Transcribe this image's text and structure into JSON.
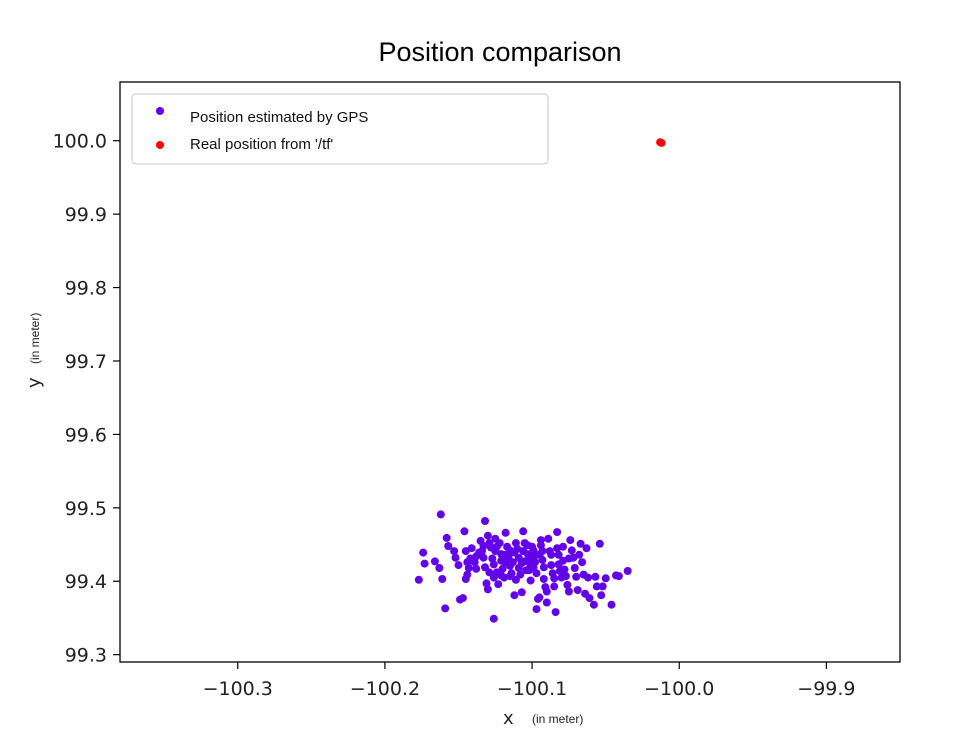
{
  "chart_data": {
    "type": "scatter",
    "title": "Position comparison",
    "xlabel": "x",
    "xlabel_unit": "(in meter)",
    "ylabel": "y",
    "ylabel_unit": "(in meter)",
    "xlim": [
      -100.38,
      -99.85
    ],
    "ylim": [
      99.29,
      100.08
    ],
    "xticks": [
      {
        "value": -100.3,
        "label": "−100.3"
      },
      {
        "value": -100.2,
        "label": "−100.2"
      },
      {
        "value": -100.1,
        "label": "−100.1"
      },
      {
        "value": -100.0,
        "label": "−100.0"
      },
      {
        "value": -99.9,
        "label": "−99.9"
      }
    ],
    "yticks": [
      {
        "value": 99.3,
        "label": "99.3"
      },
      {
        "value": 99.4,
        "label": "99.4"
      },
      {
        "value": 99.5,
        "label": "99.5"
      },
      {
        "value": 99.6,
        "label": "99.6"
      },
      {
        "value": 99.7,
        "label": "99.7"
      },
      {
        "value": 99.8,
        "label": "99.8"
      },
      {
        "value": 99.9,
        "label": "99.9"
      },
      {
        "value": 100.0,
        "label": "100.0"
      }
    ],
    "grid": false,
    "legend_position": "top-left",
    "series": [
      {
        "name": "Position estimated by GPS",
        "color": "#6200ea",
        "points": [
          [
            -100.162,
            99.491
          ],
          [
            -100.177,
            99.402
          ],
          [
            -100.174,
            99.439
          ],
          [
            -100.173,
            99.424
          ],
          [
            -100.166,
            99.427
          ],
          [
            -100.163,
            99.418
          ],
          [
            -100.161,
            99.403
          ],
          [
            -100.159,
            99.363
          ],
          [
            -100.158,
            99.459
          ],
          [
            -100.157,
            99.448
          ],
          [
            -100.153,
            99.441
          ],
          [
            -100.152,
            99.432
          ],
          [
            -100.15,
            99.422
          ],
          [
            -100.149,
            99.375
          ],
          [
            -100.147,
            99.377
          ],
          [
            -100.146,
            99.468
          ],
          [
            -100.145,
            99.441
          ],
          [
            -100.145,
            99.403
          ],
          [
            -100.144,
            99.409
          ],
          [
            -100.143,
            99.418
          ],
          [
            -100.142,
            99.431
          ],
          [
            -100.141,
            99.445
          ],
          [
            -100.139,
            99.426
          ],
          [
            -100.138,
            99.434
          ],
          [
            -100.136,
            99.439
          ],
          [
            -100.135,
            99.455
          ],
          [
            -100.134,
            99.441
          ],
          [
            -100.133,
            99.432
          ],
          [
            -100.132,
            99.482
          ],
          [
            -100.132,
            99.419
          ],
          [
            -100.131,
            99.397
          ],
          [
            -100.13,
            99.389
          ],
          [
            -100.13,
            99.462
          ],
          [
            -100.129,
            99.452
          ],
          [
            -100.128,
            99.446
          ],
          [
            -100.127,
            99.431
          ],
          [
            -100.126,
            99.423
          ],
          [
            -100.126,
            99.349
          ],
          [
            -100.125,
            99.458
          ],
          [
            -100.125,
            99.441
          ],
          [
            -100.124,
            99.412
          ],
          [
            -100.123,
            99.396
          ],
          [
            -100.122,
            99.452
          ],
          [
            -100.121,
            99.437
          ],
          [
            -100.121,
            99.428
          ],
          [
            -100.12,
            99.417
          ],
          [
            -100.119,
            99.405
          ],
          [
            -100.118,
            99.466
          ],
          [
            -100.117,
            99.447
          ],
          [
            -100.116,
            99.433
          ],
          [
            -100.115,
            99.421
          ],
          [
            -100.115,
            99.407
          ],
          [
            -100.114,
            99.411
          ],
          [
            -100.113,
            99.426
          ],
          [
            -100.112,
            99.439
          ],
          [
            -100.112,
            99.381
          ],
          [
            -100.111,
            99.452
          ],
          [
            -100.11,
            99.444
          ],
          [
            -100.109,
            99.432
          ],
          [
            -100.109,
            99.418
          ],
          [
            -100.108,
            99.409
          ],
          [
            -100.107,
            99.385
          ],
          [
            -100.106,
            99.468
          ],
          [
            -100.106,
            99.441
          ],
          [
            -100.105,
            99.427
          ],
          [
            -100.104,
            99.415
          ],
          [
            -100.103,
            99.437
          ],
          [
            -100.103,
            99.449
          ],
          [
            -100.102,
            99.431
          ],
          [
            -100.101,
            99.422
          ],
          [
            -100.101,
            99.401
          ],
          [
            -100.1,
            99.447
          ],
          [
            -100.099,
            99.442
          ],
          [
            -100.099,
            99.433
          ],
          [
            -100.098,
            99.426
          ],
          [
            -100.097,
            99.411
          ],
          [
            -100.097,
            99.362
          ],
          [
            -100.096,
            99.376
          ],
          [
            -100.095,
            99.378
          ],
          [
            -100.095,
            99.436
          ],
          [
            -100.094,
            99.456
          ],
          [
            -100.094,
            99.449
          ],
          [
            -100.093,
            99.429
          ],
          [
            -100.092,
            99.419
          ],
          [
            -100.092,
            99.403
          ],
          [
            -100.091,
            99.392
          ],
          [
            -100.09,
            99.371
          ],
          [
            -100.09,
            99.386
          ],
          [
            -100.089,
            99.458
          ],
          [
            -100.088,
            99.441
          ],
          [
            -100.087,
            99.436
          ],
          [
            -100.087,
            99.422
          ],
          [
            -100.086,
            99.411
          ],
          [
            -100.085,
            99.404
          ],
          [
            -100.085,
            99.393
          ],
          [
            -100.084,
            99.358
          ],
          [
            -100.083,
            99.467
          ],
          [
            -100.083,
            99.445
          ],
          [
            -100.082,
            99.436
          ],
          [
            -100.082,
            99.423
          ],
          [
            -100.081,
            99.414
          ],
          [
            -100.08,
            99.405
          ],
          [
            -100.079,
            99.447
          ],
          [
            -100.079,
            99.428
          ],
          [
            -100.078,
            99.416
          ],
          [
            -100.077,
            99.407
          ],
          [
            -100.076,
            99.395
          ],
          [
            -100.075,
            99.386
          ],
          [
            -100.075,
            99.431
          ],
          [
            -100.074,
            99.456
          ],
          [
            -100.073,
            99.442
          ],
          [
            -100.072,
            99.432
          ],
          [
            -100.071,
            99.418
          ],
          [
            -100.07,
            99.406
          ],
          [
            -100.069,
            99.388
          ],
          [
            -100.068,
            99.436
          ],
          [
            -100.067,
            99.451
          ],
          [
            -100.066,
            99.426
          ],
          [
            -100.065,
            99.409
          ],
          [
            -100.064,
            99.383
          ],
          [
            -100.063,
            99.445
          ],
          [
            -100.062,
            99.405
          ],
          [
            -100.061,
            99.377
          ],
          [
            -100.058,
            99.368
          ],
          [
            -100.057,
            99.406
          ],
          [
            -100.056,
            99.393
          ],
          [
            -100.054,
            99.451
          ],
          [
            -100.053,
            99.381
          ],
          [
            -100.052,
            99.393
          ],
          [
            -100.05,
            99.404
          ],
          [
            -100.046,
            99.368
          ],
          [
            -100.043,
            99.408
          ],
          [
            -100.041,
            99.407
          ],
          [
            -100.035,
            99.414
          ],
          [
            -100.133,
            99.448
          ],
          [
            -100.118,
            99.426
          ],
          [
            -100.111,
            99.402
          ],
          [
            -100.129,
            99.412
          ],
          [
            -100.107,
            99.425
          ],
          [
            -100.124,
            99.447
          ],
          [
            -100.115,
            99.442
          ],
          [
            -100.102,
            99.415
          ],
          [
            -100.138,
            99.417
          ],
          [
            -100.093,
            99.441
          ],
          [
            -100.118,
            99.436
          ],
          [
            -100.126,
            99.405
          ],
          [
            -100.105,
            99.452
          ],
          [
            -100.144,
            99.426
          ],
          [
            -100.099,
            99.419
          ],
          [
            -100.121,
            99.408
          ]
        ]
      },
      {
        "name": "Real position from '/tf'",
        "color": "#ff0000",
        "points": [
          [
            -100.013,
            99.998
          ],
          [
            -100.012,
            99.997
          ]
        ]
      }
    ]
  }
}
